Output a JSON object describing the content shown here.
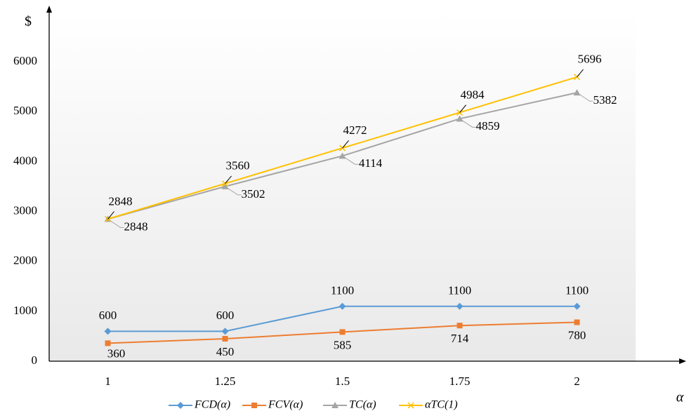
{
  "chart_data": {
    "type": "line",
    "y_label": "$",
    "x_label": "α",
    "categories": [
      "1",
      "1.25",
      "1.5",
      "1.75",
      "2"
    ],
    "series": [
      {
        "name": "FCD(α)",
        "color": "#5b9bd5",
        "marker": "diamond",
        "values": [
          600,
          600,
          1100,
          1100,
          1100
        ]
      },
      {
        "name": "FCV(α)",
        "color": "#ed7d31",
        "marker": "square",
        "values": [
          360,
          450,
          585,
          714,
          780
        ]
      },
      {
        "name": "TC(α)",
        "color": "#a5a5a5",
        "marker": "triangle",
        "values": [
          2848,
          3502,
          4114,
          4859,
          5382
        ]
      },
      {
        "name": "αTC(1)",
        "color": "#ffc000",
        "marker": "x",
        "values": [
          2848,
          3560,
          4272,
          4984,
          5696
        ]
      }
    ],
    "ylim": [
      0,
      7000
    ],
    "yticks": [
      0,
      1000,
      2000,
      3000,
      4000,
      5000,
      6000
    ],
    "legend": "bottom"
  }
}
